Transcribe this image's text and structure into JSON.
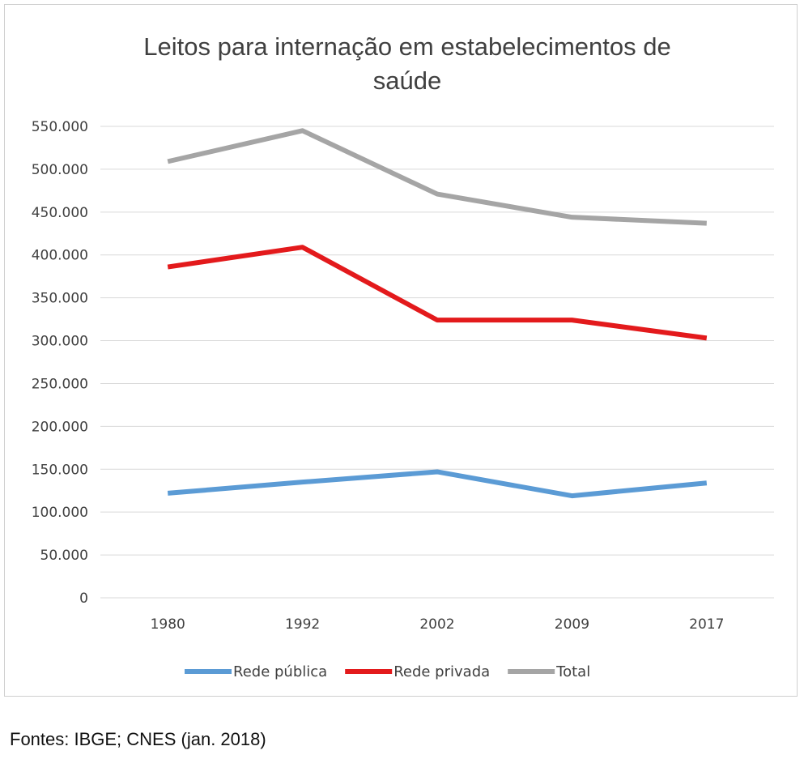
{
  "chart_data": {
    "type": "line",
    "title_lines": [
      "Leitos para internação em estabelecimentos de",
      "saúde"
    ],
    "categories": [
      "1980",
      "1992",
      "2002",
      "2009",
      "2017"
    ],
    "yticks": [
      "0",
      "50.000",
      "100.000",
      "150.000",
      "200.000",
      "250.000",
      "300.000",
      "350.000",
      "400.000",
      "450.000",
      "500.000",
      "550.000"
    ],
    "ylim": [
      0,
      550000
    ],
    "grid": true,
    "legend_position": "bottom",
    "series": [
      {
        "name": "Rede pública",
        "color": "#5B9BD5",
        "values": [
          122000,
          135000,
          147000,
          119000,
          134000
        ]
      },
      {
        "name": "Rede privada",
        "color": "#E31A1C",
        "values": [
          386000,
          409000,
          324000,
          324000,
          303000
        ]
      },
      {
        "name": "Total",
        "color": "#A5A5A5",
        "values": [
          509000,
          545000,
          471000,
          444000,
          437000
        ]
      }
    ]
  },
  "source_note": "Fontes: IBGE; CNES (jan. 2018)"
}
